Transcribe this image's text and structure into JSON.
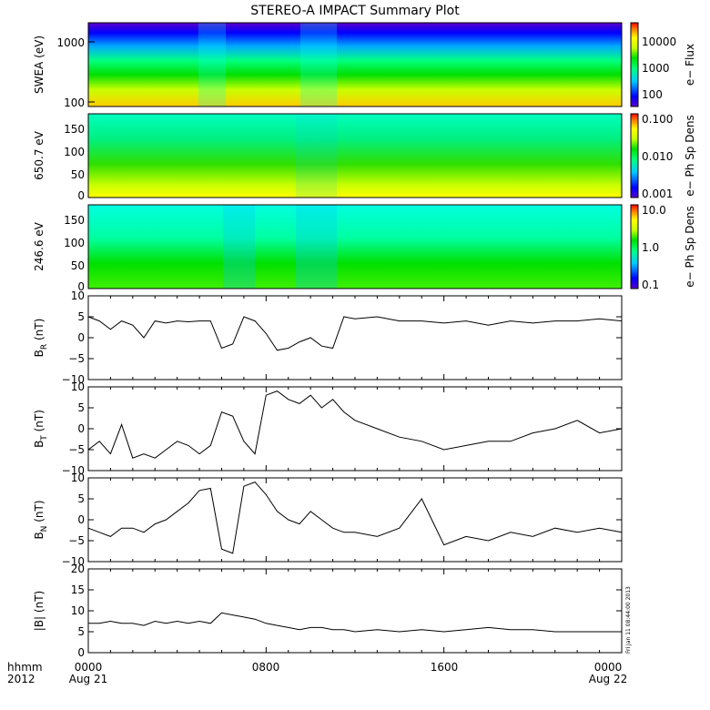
{
  "title": "STEREO-A IMPACT Summary Plot",
  "footer": {
    "row_label_1": "hhmm",
    "row_label_2": "2012",
    "ticks": [
      {
        "hhmm": "0000",
        "date": "Aug 21"
      },
      {
        "hhmm": "0800",
        "date": ""
      },
      {
        "hhmm": "1600",
        "date": ""
      },
      {
        "hhmm": "0000",
        "date": "Aug 22"
      }
    ]
  },
  "timestamp": "Fri Jan 11 08:44:00 2013",
  "colors": {
    "spectrogram_scale": [
      "#5a00c8",
      "#0000ff",
      "#00c8ff",
      "#00ff80",
      "#00e000",
      "#c8ff00",
      "#ffff00",
      "#ff8000",
      "#ff0000"
    ],
    "line": "#000000",
    "axis": "#000000"
  },
  "chart_data": [
    {
      "type": "heatmap",
      "ylabel": "SWEA (eV)",
      "y_scale": "log",
      "y_ticks": [
        "100",
        "1000"
      ],
      "colorbar_label": "e− Flux",
      "colorbar_ticks": [
        "100",
        "1000",
        "10000"
      ],
      "colorbar_scale": "log"
    },
    {
      "type": "heatmap",
      "ylabel": "650.7 eV",
      "y_ticks": [
        "0",
        "50",
        "100",
        "150"
      ],
      "ylim": [
        0,
        180
      ],
      "colorbar_label": "e− Ph Sp Dens",
      "colorbar_ticks": [
        "0.001",
        "0.010",
        "0.100"
      ],
      "colorbar_scale": "log"
    },
    {
      "type": "heatmap",
      "ylabel": "246.6 eV",
      "y_ticks": [
        "0",
        "50",
        "100",
        "150"
      ],
      "ylim": [
        0,
        180
      ],
      "colorbar_label": "e− Ph Sp Dens",
      "colorbar_ticks": [
        "0.1",
        "1.0",
        "10.0"
      ],
      "colorbar_scale": "log"
    },
    {
      "type": "line",
      "ylabel_main": "B",
      "ylabel_sub": "R",
      "ylabel_unit": " (nT)",
      "ylim": [
        -10,
        10
      ],
      "y_ticks": [
        "10",
        "5",
        "0",
        "−5",
        "−10"
      ],
      "x": [
        0,
        0.5,
        1,
        1.5,
        2,
        2.5,
        3,
        3.5,
        4,
        4.5,
        5,
        5.5,
        6,
        6.5,
        7,
        7.5,
        8,
        8.5,
        9,
        9.5,
        10,
        10.5,
        11,
        11.5,
        12,
        13,
        14,
        15,
        16,
        17,
        18,
        19,
        20,
        21,
        22,
        23,
        24
      ],
      "values": [
        5,
        4,
        2,
        4,
        3,
        0,
        4,
        3.5,
        4,
        3.8,
        4,
        4,
        -2.5,
        -1.5,
        5,
        4,
        1,
        -3,
        -2.5,
        -1,
        0,
        -2,
        -2.5,
        5,
        4.5,
        5,
        4,
        4,
        3.5,
        4,
        3,
        4,
        3.5,
        4,
        4,
        4.5,
        4
      ]
    },
    {
      "type": "line",
      "ylabel_main": "B",
      "ylabel_sub": "T",
      "ylabel_unit": " (nT)",
      "ylim": [
        -10,
        10
      ],
      "y_ticks": [
        "10",
        "5",
        "0",
        "−5",
        "−10"
      ],
      "x": [
        0,
        0.5,
        1,
        1.5,
        2,
        2.5,
        3,
        3.5,
        4,
        4.5,
        5,
        5.5,
        6,
        6.5,
        7,
        7.5,
        8,
        8.5,
        9,
        9.5,
        10,
        10.5,
        11,
        11.5,
        12,
        13,
        14,
        15,
        16,
        17,
        18,
        19,
        20,
        21,
        22,
        23,
        24
      ],
      "values": [
        -5,
        -3,
        -6,
        1,
        -7,
        -6,
        -7,
        -5,
        -3,
        -4,
        -6,
        -4,
        4,
        3,
        -3,
        -6,
        8,
        9,
        7,
        6,
        8,
        5,
        7,
        4,
        2,
        0,
        -2,
        -3,
        -5,
        -4,
        -3,
        -3,
        -1,
        0,
        2,
        -1,
        0
      ]
    },
    {
      "type": "line",
      "ylabel_main": "B",
      "ylabel_sub": "N",
      "ylabel_unit": " (nT)",
      "ylim": [
        -10,
        10
      ],
      "y_ticks": [
        "10",
        "5",
        "0",
        "−5",
        "−10"
      ],
      "x": [
        0,
        0.5,
        1,
        1.5,
        2,
        2.5,
        3,
        3.5,
        4,
        4.5,
        5,
        5.5,
        6,
        6.5,
        7,
        7.5,
        8,
        8.5,
        9,
        9.5,
        10,
        10.5,
        11,
        11.5,
        12,
        13,
        14,
        15,
        16,
        17,
        18,
        19,
        20,
        21,
        22,
        23,
        24
      ],
      "values": [
        -2,
        -3,
        -4,
        -2,
        -2,
        -3,
        -1,
        0,
        2,
        4,
        7,
        7.5,
        -7,
        -8,
        8,
        9,
        6,
        2,
        0,
        -1,
        2,
        0,
        -2,
        -3,
        -3,
        -4,
        -2,
        5,
        -6,
        -4,
        -5,
        -3,
        -4,
        -2,
        -3,
        -2,
        -3
      ]
    },
    {
      "type": "line",
      "ylabel_main": "|B|",
      "ylabel_sub": "",
      "ylabel_unit": " (nT)",
      "ylim": [
        0,
        20
      ],
      "y_ticks": [
        "20",
        "15",
        "10",
        "5",
        "0"
      ],
      "x": [
        0,
        0.5,
        1,
        1.5,
        2,
        2.5,
        3,
        3.5,
        4,
        4.5,
        5,
        5.5,
        6,
        6.5,
        7,
        7.5,
        8,
        8.5,
        9,
        9.5,
        10,
        10.5,
        11,
        11.5,
        12,
        13,
        14,
        15,
        16,
        17,
        18,
        19,
        20,
        21,
        22,
        23,
        24
      ],
      "values": [
        7,
        7,
        7.5,
        7,
        7,
        6.5,
        7.5,
        7,
        7.5,
        7,
        7.5,
        7,
        9.5,
        9,
        8.5,
        8,
        7,
        6.5,
        6,
        5.5,
        6,
        6,
        5.5,
        5.5,
        5,
        5.5,
        5,
        5.5,
        5,
        5.5,
        6,
        5.5,
        5.5,
        5,
        5,
        5,
        5
      ]
    }
  ]
}
